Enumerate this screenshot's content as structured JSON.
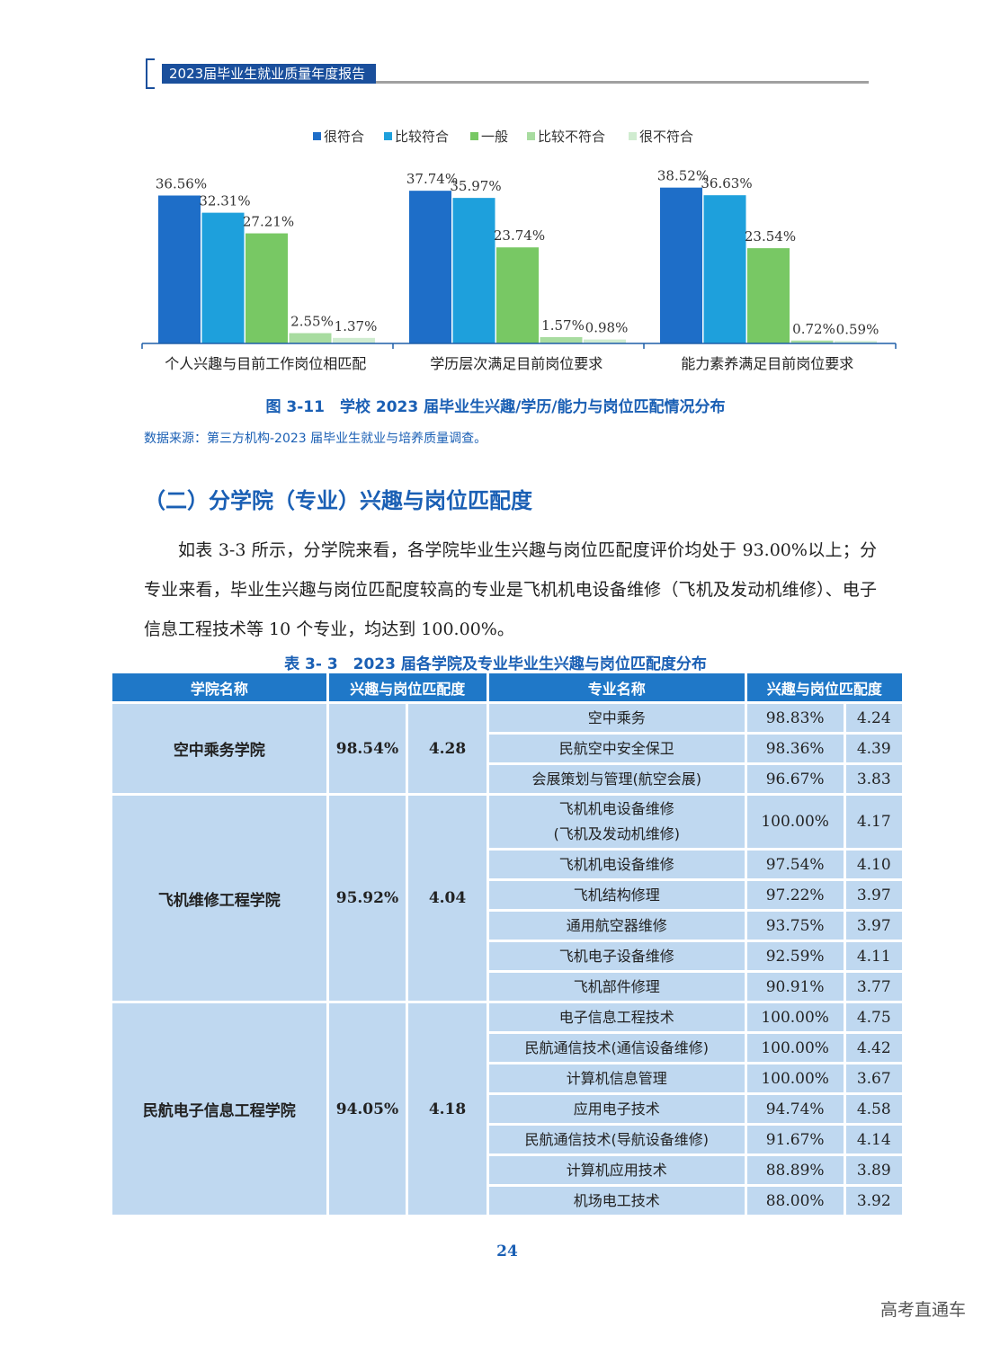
{
  "header": {
    "title": "2023届毕业生就业质量年度报告"
  },
  "chart_data": {
    "type": "bar",
    "title": "图 3-11　学校 2023 届毕业生兴趣/学历/能力与岗位匹配情况分布",
    "categories": [
      "个人兴趣与目前工作岗位相匹配",
      "学历层次满足目前岗位要求",
      "能力素养满足目前岗位要求"
    ],
    "series": [
      {
        "name": "很符合",
        "color": "#1e6ec8",
        "values": [
          36.56,
          37.74,
          38.52
        ],
        "labels": [
          "36.56%",
          "37.74%",
          "38.52%"
        ]
      },
      {
        "name": "比较符合",
        "color": "#1ea0dc",
        "values": [
          32.31,
          35.97,
          36.63
        ],
        "labels": [
          "32.31%",
          "35.97%",
          "36.63%"
        ]
      },
      {
        "name": "一般",
        "color": "#78c864",
        "values": [
          27.21,
          23.74,
          23.54
        ],
        "labels": [
          "27.21%",
          "23.74%",
          "23.54%"
        ]
      },
      {
        "name": "比较不符合",
        "color": "#a8dca0",
        "values": [
          2.55,
          1.57,
          0.72
        ],
        "labels": [
          "2.55%",
          "1.57%",
          "0.72%"
        ]
      },
      {
        "name": "很不符合",
        "color": "#d0ecd0",
        "values": [
          1.37,
          0.98,
          0.59
        ],
        "labels": [
          "1.37%",
          "0.98%",
          "0.59%"
        ]
      }
    ],
    "legend": "top-center",
    "grid": false,
    "ylim": [
      0,
      40
    ]
  },
  "figure": {
    "caption": "图 3-11　学校 2023 届毕业生兴趣/学历/能力与岗位匹配情况分布",
    "source": "数据来源：第三方机构-2023 届毕业生就业与培养质量调查。"
  },
  "section": {
    "title": "（二）分学院（专业）兴趣与岗位匹配度",
    "paragraph": "如表 3-3 所示，分学院来看，各学院毕业生兴趣与岗位匹配度评价均处于 93.00%以上；分专业来看，毕业生兴趣与岗位匹配度较高的专业是飞机机电设备维修（飞机及发动机维修）、电子信息工程技术等 10 个专业，均达到 100.00%。"
  },
  "table": {
    "caption": "表 3- 3　2023 届各学院及专业毕业生兴趣与岗位匹配度分布",
    "headers": [
      "学院名称",
      "兴趣与岗位匹配度",
      "专业名称",
      "兴趣与岗位匹配度"
    ],
    "colleges": [
      {
        "name": "空中乘务学院",
        "rate": "98.54%",
        "score": "4.28",
        "majors": [
          {
            "name": "空中乘务",
            "rate": "98.83%",
            "score": "4.24"
          },
          {
            "name": "民航空中安全保卫",
            "rate": "98.36%",
            "score": "4.39"
          },
          {
            "name": "会展策划与管理(航空会展)",
            "rate": "96.67%",
            "score": "3.83"
          }
        ]
      },
      {
        "name": "飞机维修工程学院",
        "rate": "95.92%",
        "score": "4.04",
        "majors": [
          {
            "name": "飞机机电设备维修",
            "name2": "(飞机及发动机维修)",
            "rate": "100.00%",
            "score": "4.17"
          },
          {
            "name": "飞机机电设备维修",
            "rate": "97.54%",
            "score": "4.10"
          },
          {
            "name": "飞机结构修理",
            "rate": "97.22%",
            "score": "3.97"
          },
          {
            "name": "通用航空器维修",
            "rate": "93.75%",
            "score": "3.97"
          },
          {
            "name": "飞机电子设备维修",
            "rate": "92.59%",
            "score": "4.11"
          },
          {
            "name": "飞机部件修理",
            "rate": "90.91%",
            "score": "3.77"
          }
        ]
      },
      {
        "name": "民航电子信息工程学院",
        "rate": "94.05%",
        "score": "4.18",
        "majors": [
          {
            "name": "电子信息工程技术",
            "rate": "100.00%",
            "score": "4.75"
          },
          {
            "name": "民航通信技术(通信设备维修)",
            "rate": "100.00%",
            "score": "4.42"
          },
          {
            "name": "计算机信息管理",
            "rate": "100.00%",
            "score": "3.67"
          },
          {
            "name": "应用电子技术",
            "rate": "94.74%",
            "score": "4.58"
          },
          {
            "name": "民航通信技术(导航设备维修)",
            "rate": "91.67%",
            "score": "4.14"
          },
          {
            "name": "计算机应用技术",
            "rate": "88.89%",
            "score": "3.89"
          },
          {
            "name": "机场电工技术",
            "rate": "88.00%",
            "score": "3.92"
          }
        ]
      }
    ]
  },
  "footer": {
    "page_number": "24",
    "watermark": "高考直通车"
  }
}
